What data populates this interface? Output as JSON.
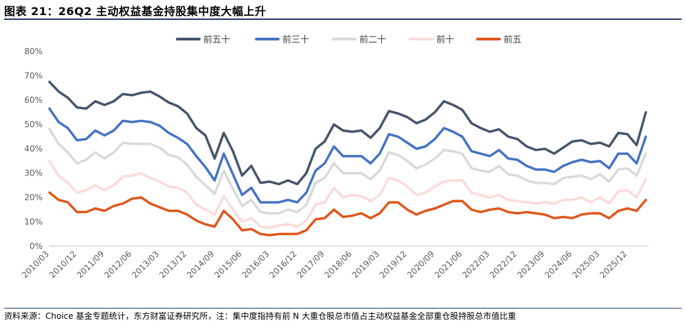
{
  "header": {
    "title": "图表 21：26Q2 主动权益基金持股集中度大幅上升"
  },
  "footer": {
    "source": "资料来源：Choice 基金专题统计，东方财富证券研究所，注：集中度指持有前 N 大重仓股总市值占主动权益基金全部重仓股持股总市值比重"
  },
  "colors": {
    "title_rule": "#1f3864"
  },
  "chart_data": {
    "type": "line",
    "title": "",
    "xlabel": "",
    "ylabel": "",
    "ylim": [
      0,
      80
    ],
    "yticks": [
      "0%",
      "10%",
      "20%",
      "30%",
      "40%",
      "50%",
      "60%",
      "70%",
      "80%"
    ],
    "grid": false,
    "legend_position": "top",
    "x_tick_labels": [
      "2010/03",
      "2010/12",
      "2011/09",
      "2012/06",
      "2013/03",
      "2013/12",
      "2014/09",
      "2015/06",
      "2016/03",
      "2016/12",
      "2017/09",
      "2018/06",
      "2019/03",
      "2019/12",
      "2020/09",
      "2021/06",
      "2022/03",
      "2022/12",
      "2023/09",
      "2024/06",
      "2025/03",
      "2025/12"
    ],
    "x": [
      "2010/03",
      "2010/06",
      "2010/09",
      "2010/12",
      "2011/03",
      "2011/06",
      "2011/09",
      "2011/12",
      "2012/03",
      "2012/06",
      "2012/09",
      "2012/12",
      "2013/03",
      "2013/06",
      "2013/09",
      "2013/12",
      "2014/03",
      "2014/06",
      "2014/09",
      "2014/12",
      "2015/03",
      "2015/06",
      "2015/09",
      "2015/12",
      "2016/03",
      "2016/06",
      "2016/09",
      "2016/12",
      "2017/03",
      "2017/06",
      "2017/09",
      "2017/12",
      "2018/03",
      "2018/06",
      "2018/09",
      "2018/12",
      "2019/03",
      "2019/06",
      "2019/09",
      "2019/12",
      "2020/03",
      "2020/06",
      "2020/09",
      "2020/12",
      "2021/03",
      "2021/06",
      "2021/09",
      "2021/12",
      "2022/03",
      "2022/06",
      "2022/09",
      "2022/12",
      "2023/03",
      "2023/06",
      "2023/09",
      "2023/12",
      "2024/03",
      "2024/06",
      "2024/09",
      "2024/12",
      "2025/03",
      "2025/06",
      "2025/09",
      "2025/12",
      "2026/03",
      "2026/06"
    ],
    "series": [
      {
        "name": "前五十",
        "color": "#44546a",
        "values": [
          67.5,
          63.5,
          61,
          57,
          56.5,
          59.5,
          58,
          59.5,
          62.5,
          62,
          63,
          63.5,
          61.5,
          59,
          57.5,
          54.5,
          48.5,
          45.5,
          36,
          46.5,
          39,
          29,
          33,
          26,
          26.5,
          25.5,
          27,
          25.5,
          30,
          40,
          43,
          50,
          47.5,
          47,
          47.5,
          44.5,
          48.5,
          55.5,
          54.5,
          53,
          50.5,
          52,
          55,
          59.5,
          58,
          56,
          50.5,
          48.5,
          47,
          48,
          45,
          44,
          41,
          39.5,
          40,
          38,
          40.5,
          43,
          43.5,
          42,
          42.5,
          41,
          46.5,
          46,
          41.5,
          55
        ]
      },
      {
        "name": "前三十",
        "color": "#4472c4",
        "values": [
          56.5,
          51,
          48.5,
          43.5,
          44,
          47.5,
          45.5,
          47.5,
          51.5,
          51,
          51.5,
          51,
          49.5,
          46.5,
          44.5,
          42,
          37,
          32.5,
          27,
          38,
          29.5,
          21,
          24,
          18,
          18,
          18,
          19,
          18,
          22,
          31,
          34,
          41,
          37,
          37,
          37,
          34,
          38,
          46,
          45,
          42.5,
          40,
          41,
          44,
          48.5,
          47,
          45,
          39,
          38,
          37,
          39.5,
          36,
          35.5,
          33,
          31.5,
          31.5,
          30.5,
          33,
          34.5,
          35.5,
          34.5,
          35,
          32,
          38,
          38,
          34,
          45
        ]
      },
      {
        "name": "前二十",
        "color": "#d9d9d9",
        "values": [
          48,
          42,
          38.5,
          34,
          35.5,
          38.5,
          36,
          38.5,
          42.5,
          42,
          42,
          42,
          40.5,
          37.5,
          36.5,
          33.5,
          28.5,
          25,
          21.5,
          31,
          23.5,
          16.5,
          19,
          14,
          13.5,
          13.5,
          15,
          14,
          17,
          26,
          28,
          34,
          30,
          30,
          30,
          27.5,
          31,
          38.5,
          37.5,
          35,
          32,
          33.5,
          36,
          39.5,
          39,
          38,
          32,
          31,
          30.5,
          33,
          29.5,
          29,
          27,
          26,
          26,
          25.5,
          28,
          28.5,
          29,
          27.5,
          29.5,
          26.5,
          31.5,
          32,
          29,
          38
        ]
      },
      {
        "name": "前十",
        "color": "#fadbd8",
        "values": [
          35,
          29,
          26,
          22,
          23,
          25,
          23,
          25,
          28.5,
          29,
          30,
          28,
          26.5,
          24.5,
          24,
          22,
          17,
          15,
          13,
          20.5,
          15,
          10,
          11.5,
          8,
          7.5,
          8.5,
          9,
          8,
          10.5,
          17,
          18,
          24,
          20,
          21,
          20.5,
          18.5,
          21,
          28,
          27,
          24.5,
          21,
          22,
          24.5,
          26.5,
          27,
          27,
          22,
          21,
          20,
          21,
          19,
          18.5,
          18,
          17.5,
          18,
          17.5,
          19,
          19,
          20,
          18,
          20,
          17.5,
          22.5,
          23,
          20,
          27.5
        ]
      },
      {
        "name": "前五",
        "color": "#e0561b",
        "values": [
          22,
          19,
          18,
          14,
          14,
          15.5,
          14.5,
          16.5,
          17.5,
          19.5,
          20,
          17.5,
          16,
          14.5,
          14.5,
          13,
          10.5,
          9,
          8,
          14.5,
          11,
          6.5,
          7,
          5,
          4.5,
          5,
          5,
          5,
          6.5,
          11,
          11.5,
          15,
          12,
          12.5,
          13.5,
          11.5,
          13.5,
          18,
          18,
          15,
          13,
          14.5,
          15.5,
          17,
          18.5,
          18.5,
          15,
          14,
          15,
          15.5,
          14,
          13.5,
          14,
          13.5,
          13,
          11.5,
          12,
          11.5,
          13,
          13.5,
          13.5,
          11.5,
          14.5,
          15.5,
          14.5,
          19
        ]
      }
    ]
  }
}
